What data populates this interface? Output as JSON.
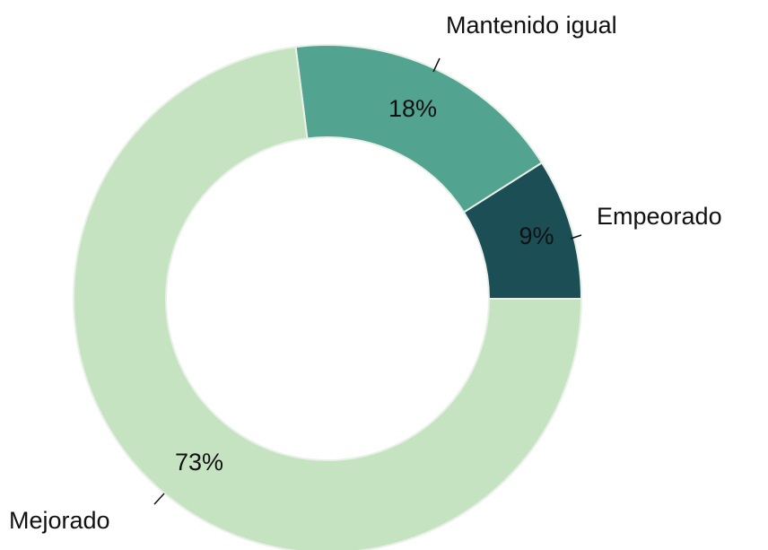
{
  "chart_data": {
    "type": "donut",
    "categories": [
      "Empeorado",
      "Mantenido igual",
      "Mejorado"
    ],
    "values": [
      9,
      18,
      73
    ],
    "value_labels": [
      "9%",
      "18%",
      "73%"
    ],
    "colors": [
      "#1b4f55",
      "#52a38f",
      "#c6e3c1"
    ]
  }
}
